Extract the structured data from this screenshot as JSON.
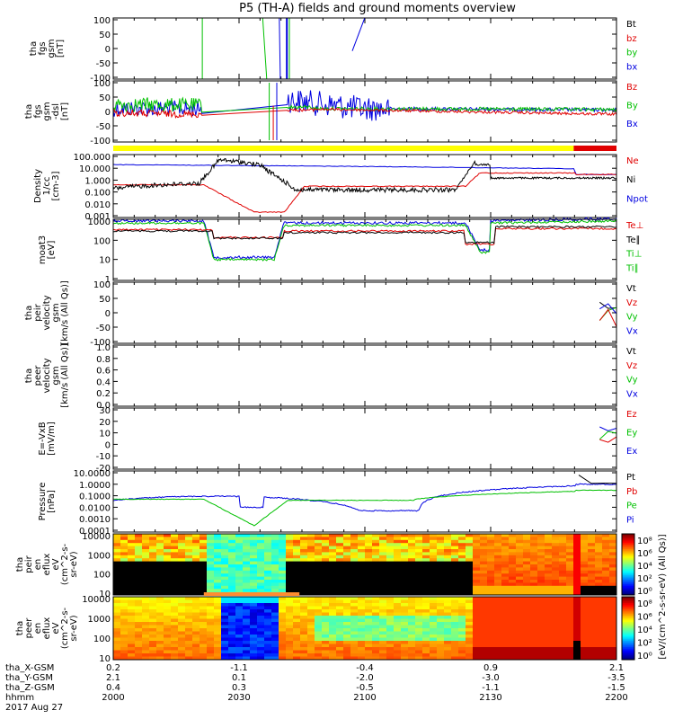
{
  "chart_data": {
    "type": "line",
    "title": "P5 (TH-A) fields and ground moments overview",
    "time_ticks": [
      "2000",
      "2030",
      "2100",
      "2130",
      "2200"
    ],
    "ephemeris": {
      "rows": [
        {
          "label": "tha_X-GSM",
          "values": [
            "0.2",
            "-1.1",
            "-0.4",
            "0.9",
            "2.1"
          ]
        },
        {
          "label": "tha_Y-GSM",
          "values": [
            "2.1",
            "0.1",
            "-2.0",
            "-3.0",
            "-3.5"
          ]
        },
        {
          "label": "tha_Z-GSM",
          "values": [
            "0.4",
            "0.3",
            "-0.5",
            "-1.1",
            "-1.5"
          ]
        },
        {
          "label": "hhmm",
          "values": [
            "2000",
            "2030",
            "2100",
            "2130",
            "2200"
          ]
        }
      ],
      "date": "2017 Aug 27"
    },
    "panels": [
      {
        "id": "fgs",
        "ylabel": [
          "tha",
          "fgs",
          "gsm",
          "[nT]"
        ],
        "yticks": [
          "100",
          "50",
          "0",
          "-50",
          "-100"
        ],
        "legend": [
          {
            "text": "Bt",
            "color": "#000000"
          },
          {
            "text": "bz",
            "color": "#e00000"
          },
          {
            "text": "by",
            "color": "#00c000"
          },
          {
            "text": "bx",
            "color": "#0000e0"
          }
        ]
      },
      {
        "id": "fgs-dsl",
        "ylabel": [
          "tha",
          "fgs",
          "gsm",
          "-dsl",
          "[nT]"
        ],
        "yticks": [
          "100",
          "50",
          "0",
          "-50",
          "-100"
        ],
        "legend": [
          {
            "text": "Bz",
            "color": "#e00000"
          },
          {
            "text": "By",
            "color": "#00c000"
          },
          {
            "text": "Bx",
            "color": "#0000e0"
          }
        ]
      },
      {
        "id": "density",
        "ylabel": [
          "Density",
          "1/cc",
          "[cm-3]"
        ],
        "yticks": [
          "100.000",
          "10.000",
          "1.000",
          "0.100",
          "0.010",
          "0.001"
        ],
        "legend": [
          {
            "text": "Ne",
            "color": "#e00000"
          },
          {
            "text": "Ni",
            "color": "#000000"
          },
          {
            "text": "Npot",
            "color": "#0000e0"
          }
        ]
      },
      {
        "id": "temp",
        "ylabel": [
          "moat3",
          "[eV]"
        ],
        "yticks": [
          "1000",
          "100",
          "10",
          "1"
        ],
        "legend": [
          {
            "text": "Te⊥",
            "color": "#e00000"
          },
          {
            "text": "Te∥",
            "color": "#000000"
          },
          {
            "text": "Ti⊥",
            "color": "#00c000"
          },
          {
            "text": "Ti∥",
            "color": "#00c000"
          }
        ]
      },
      {
        "id": "peir-vel",
        "ylabel": [
          "tha",
          "peir",
          "velocity",
          "gsm",
          "[km/s (All Qs)]"
        ],
        "yticks": [
          "100",
          "50",
          "0",
          "-50",
          "-100"
        ],
        "legend": [
          {
            "text": "Vt",
            "color": "#000000"
          },
          {
            "text": "Vz",
            "color": "#e00000"
          },
          {
            "text": "Vy",
            "color": "#00c000"
          },
          {
            "text": "Vx",
            "color": "#0000e0"
          }
        ]
      },
      {
        "id": "peer-vel",
        "ylabel": [
          "tha",
          "peer",
          "velocity",
          "gsm",
          "[km/s (All Qs)]"
        ],
        "yticks": [
          "1.0",
          "0.8",
          "0.6",
          "0.4",
          "0.2",
          "0.0"
        ],
        "legend": [
          {
            "text": "Vt",
            "color": "#000000"
          },
          {
            "text": "Vz",
            "color": "#e00000"
          },
          {
            "text": "Vy",
            "color": "#00c000"
          },
          {
            "text": "Vx",
            "color": "#0000e0"
          }
        ]
      },
      {
        "id": "efield",
        "ylabel": [
          "E=-VxB",
          "[mV/m]"
        ],
        "yticks": [
          "30",
          "20",
          "10",
          "0",
          "-10",
          "-20"
        ],
        "legend": [
          {
            "text": "Ez",
            "color": "#e00000"
          },
          {
            "text": "Ey",
            "color": "#00c000"
          },
          {
            "text": "Ex",
            "color": "#0000e0"
          }
        ]
      },
      {
        "id": "pressure",
        "ylabel": [
          "Pressure",
          "[nPa]"
        ],
        "yticks": [
          "10.0000",
          "1.0000",
          "0.1000",
          "0.0100",
          "0.0010",
          "0.0001"
        ],
        "legend": [
          {
            "text": "Pt",
            "color": "#000000"
          },
          {
            "text": "Pb",
            "color": "#e00000"
          },
          {
            "text": "Pe",
            "color": "#00c000"
          },
          {
            "text": "Pi",
            "color": "#0000e0"
          }
        ]
      },
      {
        "id": "peir-spec",
        "ylabel": [
          "tha",
          "peir",
          "en",
          "eflux",
          "eV",
          "(cm^2-s-",
          "sr-eV)"
        ],
        "yticks": [
          "10000",
          "1000",
          "100",
          "10"
        ]
      },
      {
        "id": "peer-spec",
        "ylabel": [
          "tha",
          "peer",
          "en",
          "eflux",
          "eV",
          "(cm^2-s-",
          "sr-eV)"
        ],
        "yticks": [
          "10000",
          "1000",
          "100",
          "10"
        ]
      }
    ],
    "colorbar": {
      "label": "[eV/(cm^2-s-sr-eV) (All Qs)]",
      "ticks_top": [
        "10⁸",
        "10⁶",
        "10⁴",
        "10²",
        "10⁰"
      ],
      "ticks_bottom": [
        "10⁸",
        "10⁶",
        "10⁴",
        "10²",
        "10⁰"
      ]
    },
    "colors": {
      "red": "#e00000",
      "green": "#00c000",
      "blue": "#0000e0",
      "yellow": "#ffff00"
    }
  }
}
